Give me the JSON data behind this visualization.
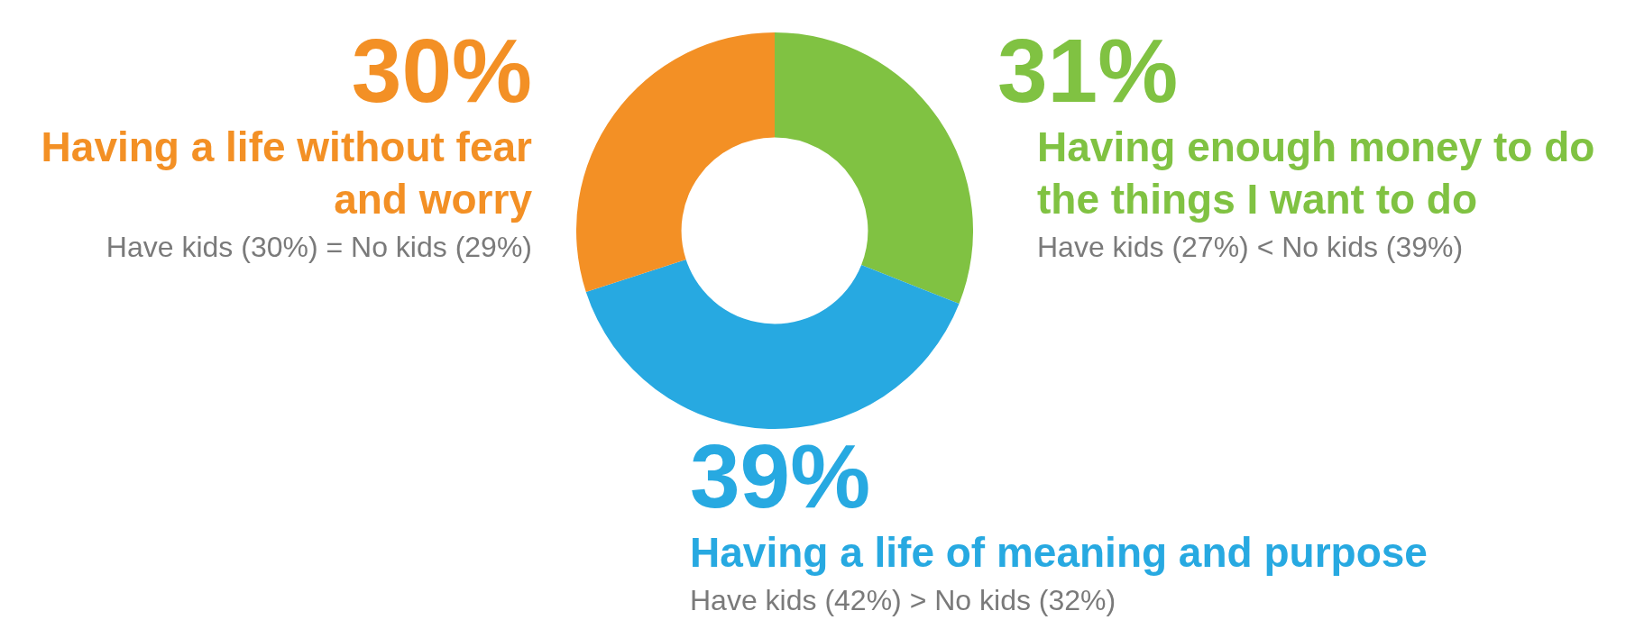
{
  "chart_data": {
    "type": "donut",
    "categories": [
      "Having enough money to do the things I want to do",
      "Having a life of meaning and purpose",
      "Having a life without fear and worry"
    ],
    "values": [
      31,
      39,
      30
    ],
    "colors": [
      "#80c242",
      "#27a9e1",
      "#f39025"
    ],
    "value_labels": [
      "31%",
      "39%",
      "30%"
    ],
    "annotations": [
      "Have kids (27%) < No kids (39%)",
      "Have kids (42%) > No kids (32%)",
      "Have kids (30%) = No kids (29%)"
    ],
    "legend": false
  }
}
